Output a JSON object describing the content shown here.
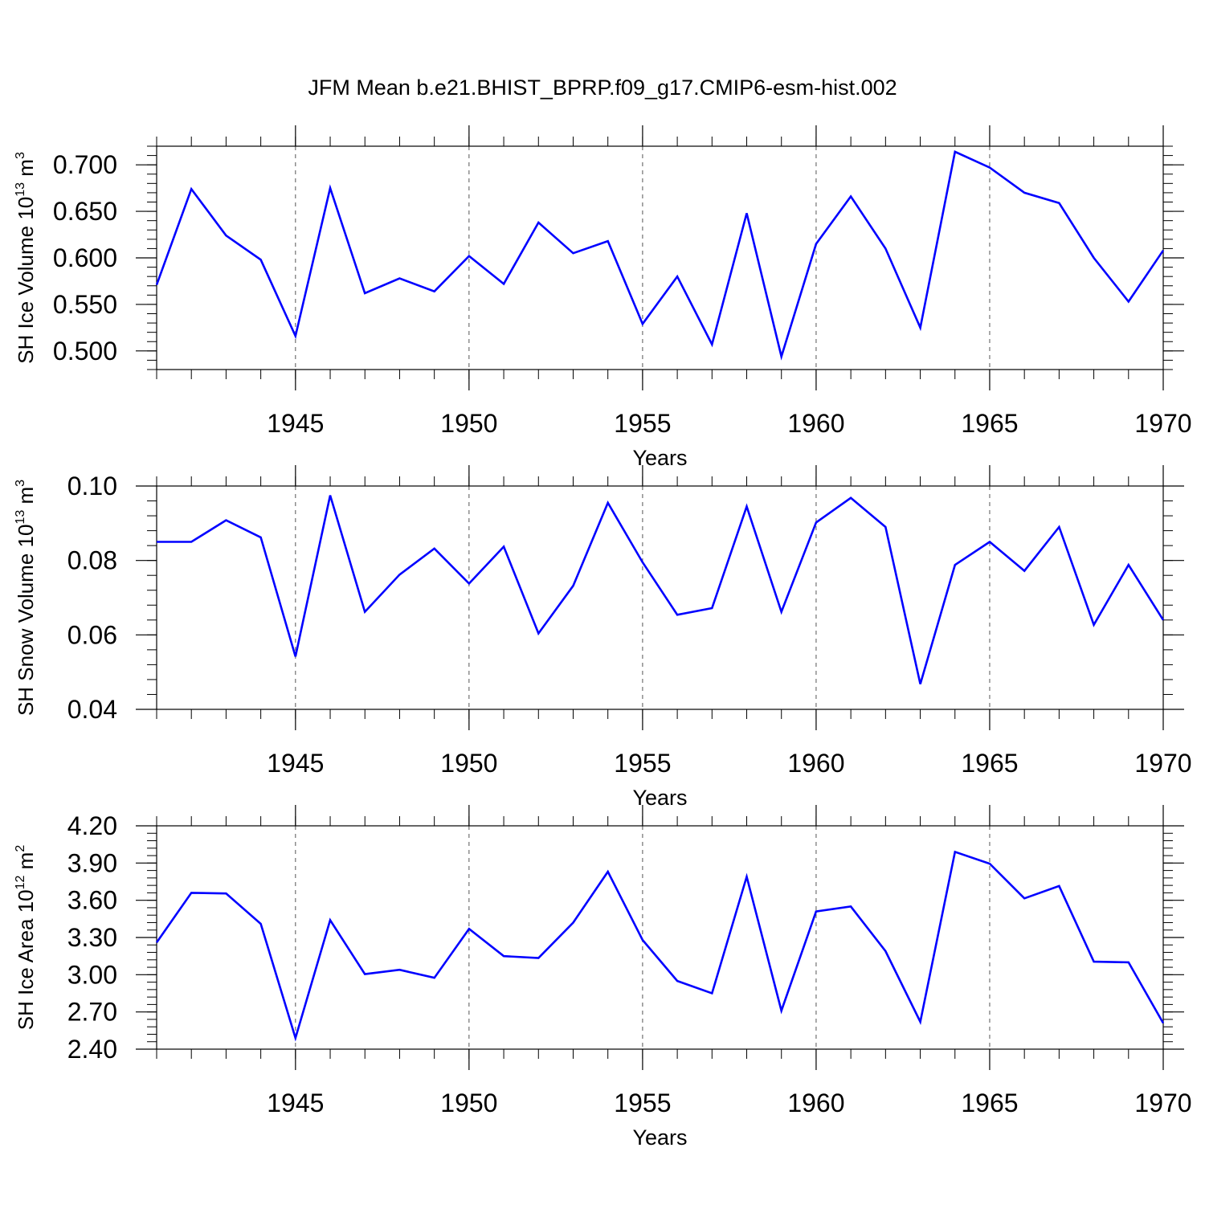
{
  "title": "JFM Mean b.e21.BHIST_BPRP.f09_g17.CMIP6-esm-hist.002",
  "line_color": "#0000ff",
  "grid_color": "#555555",
  "chart_data": [
    {
      "type": "line",
      "xlabel": "Years",
      "ylabel": {
        "main": "SH Ice Volume 10",
        "sup": "13",
        "unit": " m",
        "unit_sup": "3"
      },
      "xlim": [
        1941,
        1970
      ],
      "ylim": [
        0.48,
        0.72
      ],
      "xticks": [
        1945,
        1950,
        1955,
        1960,
        1965,
        1970
      ],
      "xtick_labels": [
        "1945",
        "1950",
        "1955",
        "1960",
        "1965",
        "1970"
      ],
      "yticks": [
        0.5,
        0.55,
        0.6,
        0.65,
        0.7
      ],
      "ytick_labels": [
        "0.500",
        "0.550",
        "0.600",
        "0.650",
        "0.700"
      ],
      "grid": "vertical dashed at major x ticks",
      "x": [
        1941,
        1942,
        1943,
        1944,
        1945,
        1946,
        1947,
        1948,
        1949,
        1950,
        1951,
        1952,
        1953,
        1954,
        1955,
        1956,
        1957,
        1958,
        1959,
        1960,
        1961,
        1962,
        1963,
        1964,
        1965,
        1966,
        1967,
        1968,
        1969,
        1970
      ],
      "series": [
        {
          "name": "SH Ice Volume",
          "values": [
            0.571,
            0.674,
            0.624,
            0.598,
            0.516,
            0.675,
            0.562,
            0.578,
            0.564,
            0.602,
            0.572,
            0.638,
            0.605,
            0.618,
            0.529,
            0.58,
            0.507,
            0.648,
            0.494,
            0.615,
            0.666,
            0.61,
            0.525,
            0.714,
            0.697,
            0.67,
            0.659,
            0.6,
            0.553,
            0.608
          ]
        }
      ]
    },
    {
      "type": "line",
      "xlabel": "Years",
      "ylabel": {
        "main": "SH Snow Volume 10",
        "sup": "13",
        "unit": " m",
        "unit_sup": "3"
      },
      "xlim": [
        1941,
        1970
      ],
      "ylim": [
        0.04,
        0.1
      ],
      "xticks": [
        1945,
        1950,
        1955,
        1960,
        1965,
        1970
      ],
      "xtick_labels": [
        "1945",
        "1950",
        "1955",
        "1960",
        "1965",
        "1970"
      ],
      "yticks": [
        0.04,
        0.06,
        0.08,
        0.1
      ],
      "ytick_labels": [
        "0.04",
        "0.06",
        "0.08",
        "0.10"
      ],
      "grid": "vertical dashed at major x ticks",
      "x": [
        1941,
        1942,
        1943,
        1944,
        1945,
        1946,
        1947,
        1948,
        1949,
        1950,
        1951,
        1952,
        1953,
        1954,
        1955,
        1956,
        1957,
        1958,
        1959,
        1960,
        1961,
        1962,
        1963,
        1964,
        1965,
        1966,
        1967,
        1968,
        1969,
        1970
      ],
      "series": [
        {
          "name": "SH Snow Volume",
          "values": [
            0.085,
            0.085,
            0.0908,
            0.0862,
            0.0542,
            0.0975,
            0.0662,
            0.0762,
            0.0832,
            0.0738,
            0.0837,
            0.0604,
            0.0732,
            0.0955,
            0.0795,
            0.0654,
            0.0672,
            0.0945,
            0.0662,
            0.0902,
            0.0968,
            0.089,
            0.0468,
            0.0788,
            0.085,
            0.0772,
            0.089,
            0.0627,
            0.0788,
            0.064
          ]
        }
      ]
    },
    {
      "type": "line",
      "xlabel": "Years",
      "ylabel": {
        "main": "SH Ice Area 10",
        "sup": "12",
        "unit": " m",
        "unit_sup": "2"
      },
      "xlim": [
        1941,
        1970
      ],
      "ylim": [
        2.4,
        4.2
      ],
      "xticks": [
        1945,
        1950,
        1955,
        1960,
        1965,
        1970
      ],
      "xtick_labels": [
        "1945",
        "1950",
        "1955",
        "1960",
        "1965",
        "1970"
      ],
      "yticks": [
        2.4,
        2.7,
        3.0,
        3.3,
        3.6,
        3.9,
        4.2
      ],
      "ytick_labels": [
        "2.40",
        "2.70",
        "3.00",
        "3.30",
        "3.60",
        "3.90",
        "4.20"
      ],
      "grid": "vertical dashed at major x ticks",
      "x": [
        1941,
        1942,
        1943,
        1944,
        1945,
        1946,
        1947,
        1948,
        1949,
        1950,
        1951,
        1952,
        1953,
        1954,
        1955,
        1956,
        1957,
        1958,
        1959,
        1960,
        1961,
        1962,
        1963,
        1964,
        1965,
        1966,
        1967,
        1968,
        1969,
        1970
      ],
      "series": [
        {
          "name": "SH Ice Area",
          "values": [
            3.26,
            3.66,
            3.655,
            3.41,
            2.49,
            3.44,
            3.005,
            3.04,
            2.975,
            3.37,
            3.15,
            3.135,
            3.42,
            3.83,
            3.28,
            2.95,
            2.85,
            3.79,
            2.71,
            3.51,
            3.55,
            3.19,
            2.62,
            3.99,
            3.895,
            3.615,
            3.715,
            3.105,
            3.1,
            2.61
          ]
        }
      ]
    }
  ]
}
